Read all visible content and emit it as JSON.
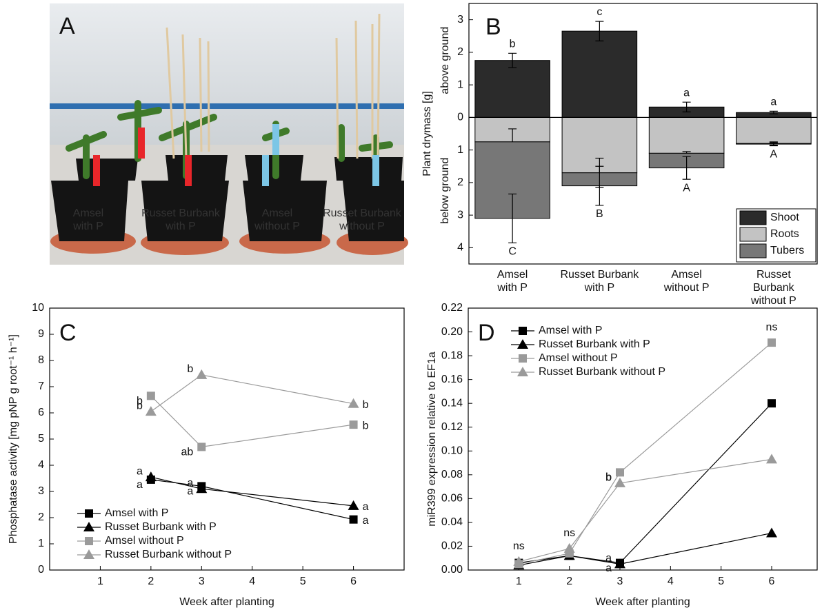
{
  "photo": {
    "panel_label": "A",
    "captions": [
      "Amsel\nwith P",
      "Russet Burbank\nwith P",
      "Amsel\nwithout P",
      "Russet Burbank\nwithout P"
    ]
  },
  "chart_data": [
    {
      "type": "stacked-bar",
      "panel_label": "B",
      "ylabel": "Plant drymass [g]",
      "ylabel_above": "above ground",
      "ylabel_below": "below ground",
      "categories": [
        "Amsel\nwith P",
        "Russet Burbank\nwith P",
        "Amsel\nwithout P",
        "Russet Burbank\nwithout P"
      ],
      "series": [
        {
          "name": "Shoot",
          "color": "#2b2b2b",
          "values": [
            1.75,
            2.65,
            0.32,
            0.15
          ],
          "errors": [
            0.22,
            0.3,
            0.15,
            0.04
          ],
          "letters": [
            "b",
            "c",
            "a",
            "a"
          ]
        },
        {
          "name": "Roots",
          "color": "#c3c3c3",
          "values": [
            -0.75,
            -1.7,
            -1.1,
            -0.8
          ],
          "errors": [
            0.4,
            0.45,
            0.05,
            0.05
          ]
        },
        {
          "name": "Tubers",
          "color": "#777777",
          "values": [
            -2.35,
            -0.4,
            -0.45,
            -0.02
          ],
          "errors": [
            0.75,
            0.6,
            0.35,
            0.05
          ],
          "letters": [
            "C",
            "B",
            "A",
            "A"
          ]
        }
      ],
      "ylim": [
        -4.5,
        3.5
      ],
      "yticks": [
        {
          "value": -4,
          "label": "4"
        },
        {
          "value": -3,
          "label": "3"
        },
        {
          "value": -2,
          "label": "2"
        },
        {
          "value": -1,
          "label": "1"
        },
        0,
        1,
        2,
        3
      ],
      "legend": "lower right"
    },
    {
      "type": "line",
      "panel_label": "C",
      "xlabel": "Week after planting",
      "ylabel": "Phosphatase activity [mg pNP g root⁻¹ h⁻¹]",
      "x": [
        2,
        3,
        6
      ],
      "series": [
        {
          "name": "Amsel with P",
          "color": "#000000",
          "marker": "square",
          "values": [
            3.45,
            3.2,
            1.93
          ],
          "letters": [
            "a",
            "a",
            "a"
          ]
        },
        {
          "name": "Russet Burbank with P",
          "color": "#000000",
          "marker": "triangle",
          "values": [
            3.55,
            3.1,
            2.45
          ],
          "letters": [
            "a",
            "a",
            "a"
          ]
        },
        {
          "name": "Amsel without P",
          "color": "#9a9a9a",
          "marker": "square",
          "values": [
            6.65,
            4.7,
            5.55
          ],
          "letters": [
            "b",
            "ab",
            "b"
          ]
        },
        {
          "name": "Russet Burbank without P",
          "color": "#9a9a9a",
          "marker": "triangle",
          "values": [
            6.05,
            7.45,
            6.35
          ],
          "letters": [
            "b",
            "b",
            "b"
          ]
        }
      ],
      "xlim": [
        0,
        7
      ],
      "xticks": [
        1,
        2,
        3,
        4,
        5,
        6
      ],
      "ylim": [
        0,
        10
      ],
      "yticks": [
        0,
        1,
        2,
        3,
        4,
        5,
        6,
        7,
        8,
        9,
        10
      ],
      "legend": "lower left"
    },
    {
      "type": "line",
      "panel_label": "D",
      "xlabel": "Week after planting",
      "ylabel": "miR399 expression relative to EF1a",
      "x": [
        1,
        2,
        3,
        6
      ],
      "group_labels": [
        "ns",
        "ns",
        null,
        "ns"
      ],
      "series": [
        {
          "name": "Amsel with P",
          "color": "#000000",
          "marker": "square",
          "values": [
            0.006,
            0.012,
            0.006,
            0.14
          ],
          "letters": [
            null,
            null,
            "a",
            null
          ]
        },
        {
          "name": "Russet Burbank with P",
          "color": "#000000",
          "marker": "triangle",
          "values": [
            0.004,
            0.012,
            0.005,
            0.031
          ],
          "letters": [
            null,
            null,
            "a",
            null
          ]
        },
        {
          "name": "Amsel without P",
          "color": "#9a9a9a",
          "marker": "square",
          "values": [
            0.005,
            0.014,
            0.082,
            0.191
          ],
          "letters": [
            null,
            null,
            "b",
            null
          ]
        },
        {
          "name": "Russet Burbank without P",
          "color": "#9a9a9a",
          "marker": "triangle",
          "values": [
            0.007,
            0.018,
            0.073,
            0.093
          ],
          "letters": [
            null,
            null,
            "b",
            null
          ]
        }
      ],
      "xlim": [
        0,
        6.9
      ],
      "xticks": [
        1,
        2,
        3,
        4,
        5,
        6
      ],
      "ylim": [
        0,
        0.22
      ],
      "yticks": [
        {
          "value": 0,
          "label": "0.00"
        },
        0.02,
        0.04,
        0.06,
        0.08,
        {
          "value": 0.1,
          "label": "0.10"
        },
        0.12,
        0.14,
        0.16,
        0.18,
        {
          "value": 0.2,
          "label": "0.20"
        },
        0.22
      ],
      "legend": "upper left"
    }
  ]
}
